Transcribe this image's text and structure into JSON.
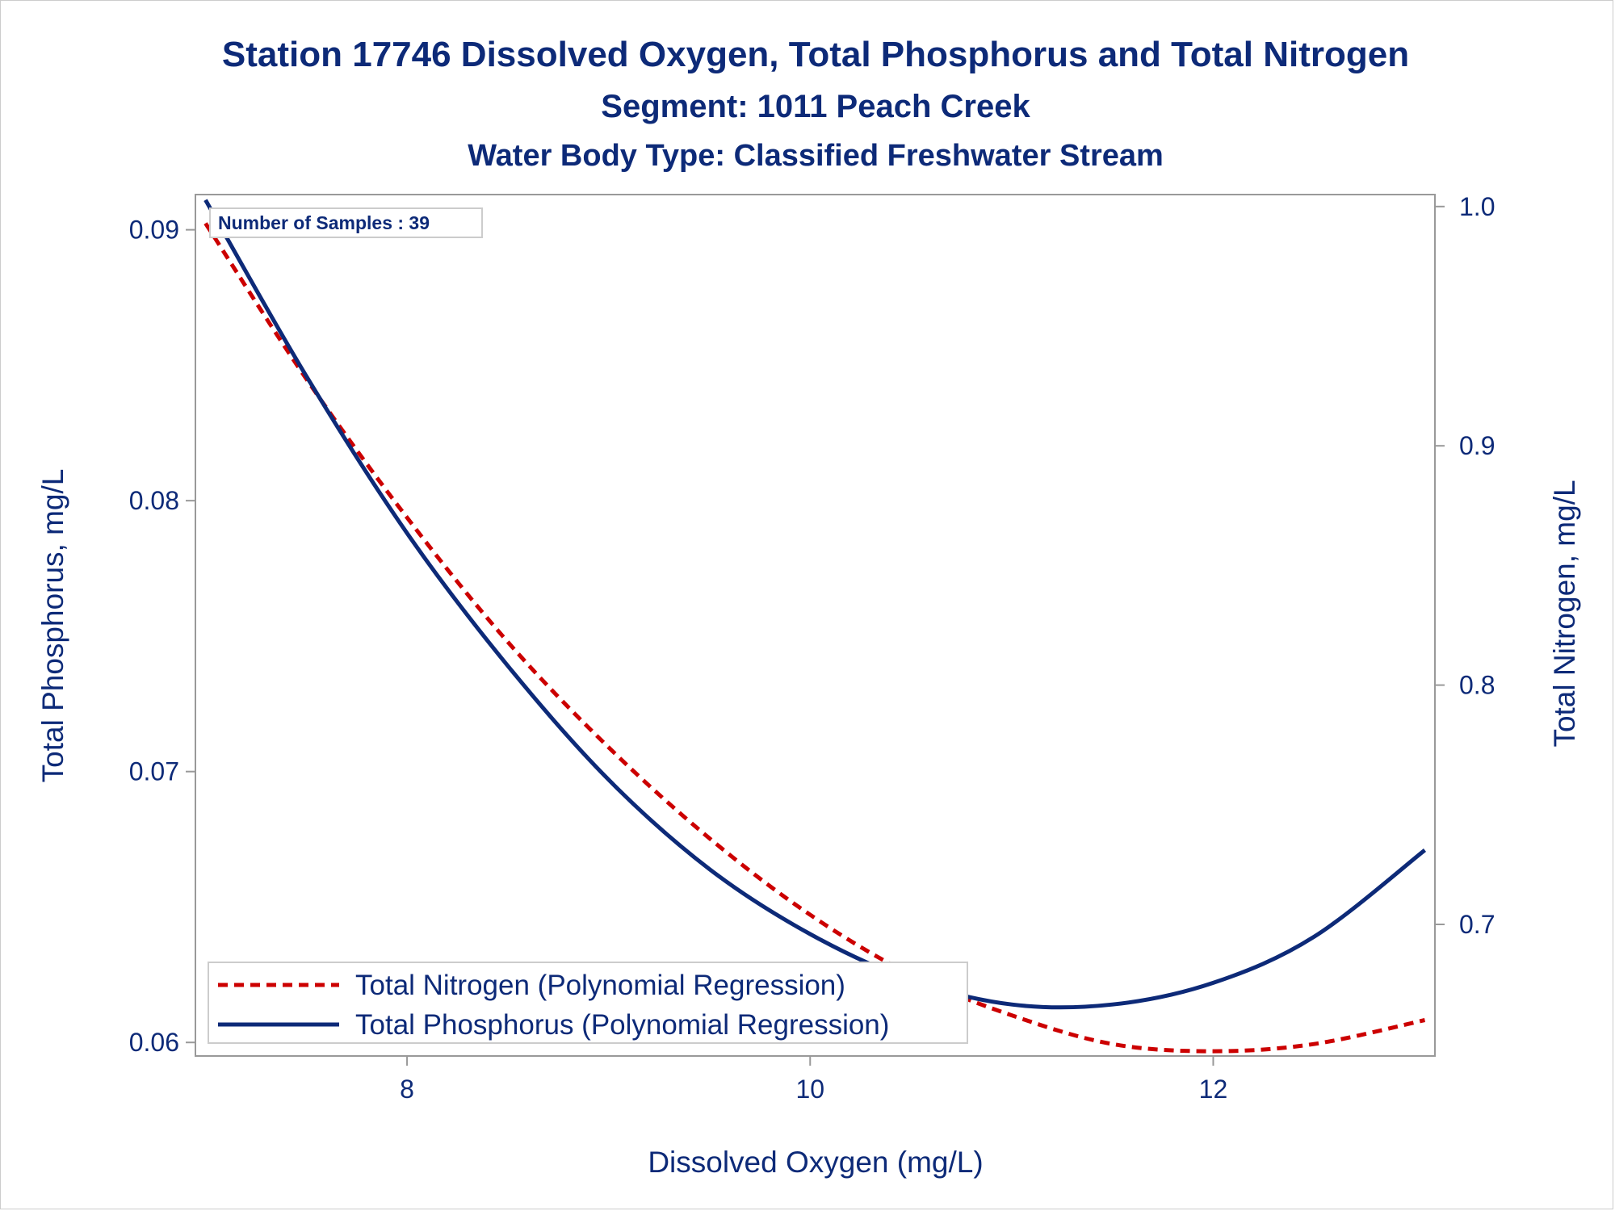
{
  "chart_data": {
    "type": "line",
    "title": "Station 17746  Dissolved Oxygen, Total Phosphorus and Total Nitrogen",
    "subtitle": "Segment: 1011  Peach Creek",
    "subtitle2": "Water Body Type: Classified Freshwater Stream",
    "xlabel": "Dissolved Oxygen (mg/L)",
    "ylabel_left": "Total Phosphorus, mg/L",
    "ylabel_right": "Total Nitrogen, mg/L",
    "xlim": [
      6.95,
      13.1
    ],
    "ylim_left": [
      0.0595,
      0.0913
    ],
    "ylim_right": [
      0.645,
      1.005
    ],
    "x_ticks": [
      "8",
      "10",
      "12"
    ],
    "y_left_ticks": [
      "0.06",
      "0.07",
      "0.08",
      "0.09"
    ],
    "y_right_ticks": [
      "0.7",
      "0.8",
      "0.9",
      "1.0"
    ],
    "grid": false,
    "legend_position": "bottom-left",
    "annotation": "Number of Samples : 39",
    "colors": {
      "nitrogen": "#cc0000",
      "phosphorus": "#0d2a78",
      "text": "#0d2a78",
      "axis": "#999999"
    },
    "series": [
      {
        "name": "Total Nitrogen (Polynomial Regression)",
        "axis": "right",
        "style": "dashed",
        "x": [
          7.0,
          7.5,
          8.0,
          8.5,
          9.0,
          9.5,
          10.0,
          10.5,
          11.0,
          11.5,
          12.0,
          12.5,
          13.05
        ],
        "y": [
          0.993,
          0.928,
          0.87,
          0.818,
          0.774,
          0.736,
          0.704,
          0.679,
          0.662,
          0.65,
          0.647,
          0.65,
          0.66
        ]
      },
      {
        "name": "Total Phosphorus (Polynomial Regression)",
        "axis": "left",
        "style": "solid",
        "x": [
          7.0,
          7.5,
          8.0,
          8.5,
          9.0,
          9.5,
          10.0,
          10.5,
          11.0,
          11.5,
          12.0,
          12.5,
          13.05
        ],
        "y": [
          0.0911,
          0.0846,
          0.0788,
          0.0739,
          0.0697,
          0.0664,
          0.064,
          0.0623,
          0.0614,
          0.0614,
          0.0622,
          0.0639,
          0.0671
        ]
      }
    ]
  }
}
